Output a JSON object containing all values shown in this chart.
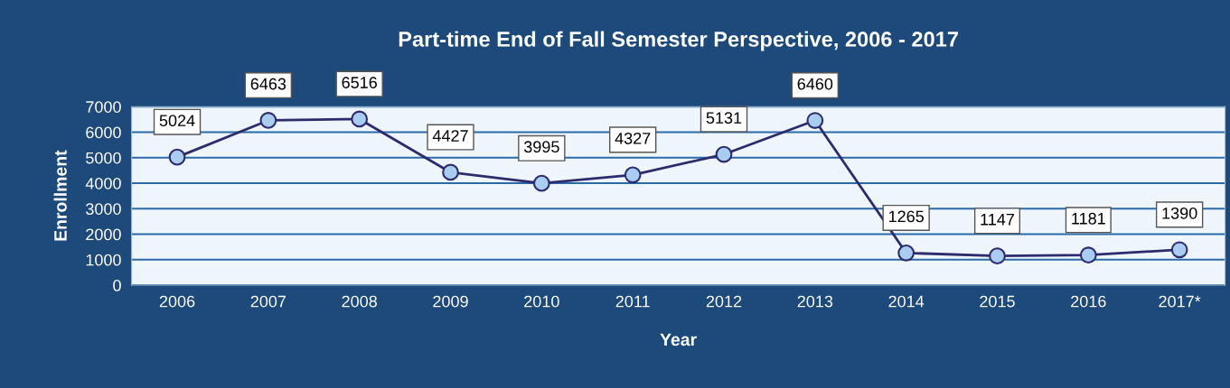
{
  "chart_data": {
    "type": "line",
    "title": "Part-time End of Fall Semester Perspective, 2006 - 2017",
    "xlabel": "Year",
    "ylabel": "Enrollment",
    "categories": [
      "2006",
      "2007",
      "2008",
      "2009",
      "2010",
      "2011",
      "2012",
      "2013",
      "2014",
      "2015",
      "2016",
      "2017*"
    ],
    "series": [
      {
        "color": "#2e2a6e",
        "values": [
          5024,
          6463,
          6516,
          4427,
          3995,
          4327,
          5131,
          6460,
          1265,
          1147,
          1181,
          1390
        ]
      }
    ],
    "ylim": [
      0,
      7000
    ],
    "yticks": [
      0,
      1000,
      2000,
      3000,
      4000,
      5000,
      6000,
      7000
    ],
    "grid": "y",
    "legend": false,
    "marker": "circle",
    "line_style": "solid",
    "data_labels": true
  }
}
